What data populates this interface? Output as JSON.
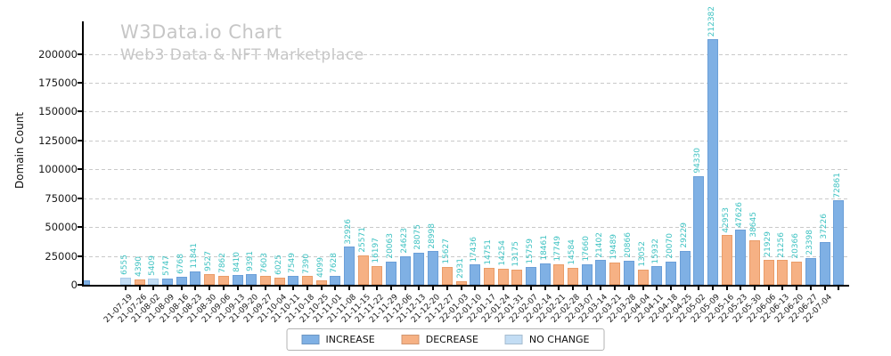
{
  "header": {
    "title": "W3Data.io Chart",
    "subtitle": "Web3 Data & NFT Marketplace"
  },
  "ylabel": "Domain Count",
  "legend": [
    {
      "label": "INCREASE",
      "color": "#7fb0e4",
      "type": "increase"
    },
    {
      "label": "DECREASE",
      "color": "#f6b184",
      "type": "decrease"
    },
    {
      "label": "NO CHANGE",
      "color": "#c3ddf4",
      "type": "no_change"
    }
  ],
  "colors": {
    "increase": "#7fb0e4",
    "decrease": "#f6b184",
    "no_change": "#c3ddf4",
    "value_label": "#3ec2c2",
    "title_gray": "#c6c6c6"
  },
  "chart_data": {
    "type": "bar",
    "title": "W3Data.io Chart",
    "subtitle": "Web3 Data & NFT Marketplace",
    "xlabel": "",
    "ylabel": "Domain Count",
    "ylim": [
      0,
      231000
    ],
    "y_ticks": [
      0,
      25000,
      50000,
      75000,
      100000,
      125000,
      150000,
      175000,
      200000
    ],
    "grid": "horizontal-dashed",
    "legend_position": "bottom-center",
    "bar_value_labels": "teal, rotated 90",
    "edge_bar": {
      "date": "",
      "value": 3800,
      "type": "increase",
      "note": "small clipped unlabeled bar at left plot edge"
    },
    "points": [
      {
        "date": "21-07-19",
        "value": 6555,
        "type": "no_change"
      },
      {
        "date": "21-07-26",
        "value": 4390,
        "type": "decrease"
      },
      {
        "date": "21-08-02",
        "value": 5409,
        "type": "no_change"
      },
      {
        "date": "21-08-09",
        "value": 5747,
        "type": "increase"
      },
      {
        "date": "21-08-16",
        "value": 6768,
        "type": "increase"
      },
      {
        "date": "21-08-23",
        "value": 11841,
        "type": "increase"
      },
      {
        "date": "21-08-30",
        "value": 9527,
        "type": "decrease"
      },
      {
        "date": "21-09-06",
        "value": 7862,
        "type": "decrease"
      },
      {
        "date": "21-09-13",
        "value": 8410,
        "type": "increase"
      },
      {
        "date": "21-09-20",
        "value": 9391,
        "type": "increase"
      },
      {
        "date": "21-09-27",
        "value": 7603,
        "type": "decrease"
      },
      {
        "date": "21-10-04",
        "value": 6025,
        "type": "decrease"
      },
      {
        "date": "21-10-11",
        "value": 7549,
        "type": "increase"
      },
      {
        "date": "21-10-18",
        "value": 7390,
        "type": "decrease"
      },
      {
        "date": "21-10-25",
        "value": 4099,
        "type": "decrease"
      },
      {
        "date": "21-11-01",
        "value": 7628,
        "type": "increase"
      },
      {
        "date": "21-11-08",
        "value": 32926,
        "type": "increase"
      },
      {
        "date": "21-11-15",
        "value": 25571,
        "type": "decrease"
      },
      {
        "date": "21-11-22",
        "value": 16197,
        "type": "decrease"
      },
      {
        "date": "21-11-29",
        "value": 20063,
        "type": "increase"
      },
      {
        "date": "21-12-06",
        "value": 24623,
        "type": "increase"
      },
      {
        "date": "21-12-13",
        "value": 28075,
        "type": "increase"
      },
      {
        "date": "21-12-20",
        "value": 28998,
        "type": "increase"
      },
      {
        "date": "21-12-27",
        "value": 15627,
        "type": "decrease"
      },
      {
        "date": "22-01-03",
        "value": 2931,
        "type": "decrease"
      },
      {
        "date": "22-01-10",
        "value": 17436,
        "type": "increase"
      },
      {
        "date": "22-01-17",
        "value": 14751,
        "type": "decrease"
      },
      {
        "date": "22-01-24",
        "value": 14254,
        "type": "decrease"
      },
      {
        "date": "22-01-31",
        "value": 13175,
        "type": "decrease"
      },
      {
        "date": "22-02-07",
        "value": 15759,
        "type": "increase"
      },
      {
        "date": "22-02-14",
        "value": 18461,
        "type": "increase"
      },
      {
        "date": "22-02-21",
        "value": 17749,
        "type": "decrease"
      },
      {
        "date": "22-02-28",
        "value": 14584,
        "type": "decrease"
      },
      {
        "date": "22-03-07",
        "value": 17660,
        "type": "increase"
      },
      {
        "date": "22-03-14",
        "value": 21402,
        "type": "increase"
      },
      {
        "date": "22-03-21",
        "value": 19489,
        "type": "decrease"
      },
      {
        "date": "22-03-28",
        "value": 20866,
        "type": "increase"
      },
      {
        "date": "22-04-04",
        "value": 13052,
        "type": "decrease"
      },
      {
        "date": "22-04-11",
        "value": 15932,
        "type": "increase"
      },
      {
        "date": "22-04-18",
        "value": 20070,
        "type": "increase"
      },
      {
        "date": "22-04-25",
        "value": 29229,
        "type": "increase"
      },
      {
        "date": "22-05-02",
        "value": 94330,
        "type": "increase"
      },
      {
        "date": "22-05-09",
        "value": 212382,
        "type": "increase"
      },
      {
        "date": "22-05-16",
        "value": 42953,
        "type": "decrease"
      },
      {
        "date": "22-05-23",
        "value": 47626,
        "type": "increase"
      },
      {
        "date": "22-05-30",
        "value": 38645,
        "type": "decrease"
      },
      {
        "date": "22-06-06",
        "value": 21929,
        "type": "decrease"
      },
      {
        "date": "22-06-13",
        "value": 21256,
        "type": "decrease"
      },
      {
        "date": "22-06-20",
        "value": 20366,
        "type": "decrease"
      },
      {
        "date": "22-06-27",
        "value": 23398,
        "type": "increase"
      },
      {
        "date": "22-07-04",
        "value": 37226,
        "type": "increase"
      },
      {
        "date": "",
        "value": 72861,
        "type": "increase"
      }
    ]
  }
}
